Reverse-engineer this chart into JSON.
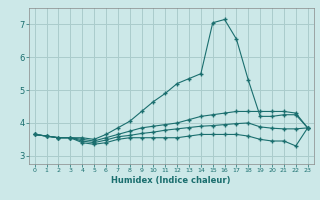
{
  "title": "",
  "xlabel": "Humidex (Indice chaleur)",
  "bg_color": "#cce8e8",
  "line_color": "#1a6e6e",
  "grid_color": "#aacccc",
  "xlim": [
    -0.5,
    23.5
  ],
  "ylim": [
    2.75,
    7.5
  ],
  "xticks": [
    0,
    1,
    2,
    3,
    4,
    5,
    6,
    7,
    8,
    9,
    10,
    11,
    12,
    13,
    14,
    15,
    16,
    17,
    18,
    19,
    20,
    21,
    22,
    23
  ],
  "yticks": [
    3,
    4,
    5,
    6,
    7
  ],
  "lines": [
    {
      "x": [
        0,
        1,
        2,
        3,
        4,
        5,
        6,
        7,
        8,
        9,
        10,
        11,
        12,
        13,
        14,
        15,
        16,
        17,
        18,
        19,
        20,
        21,
        22,
        23
      ],
      "y": [
        3.65,
        3.6,
        3.55,
        3.55,
        3.55,
        3.5,
        3.65,
        3.85,
        4.05,
        4.35,
        4.65,
        4.9,
        5.2,
        5.35,
        5.5,
        7.05,
        7.15,
        6.55,
        5.3,
        4.2,
        4.2,
        4.25,
        4.25,
        3.85
      ]
    },
    {
      "x": [
        0,
        1,
        2,
        3,
        4,
        5,
        6,
        7,
        8,
        9,
        10,
        11,
        12,
        13,
        14,
        15,
        16,
        17,
        18,
        19,
        20,
        21,
        22,
        23
      ],
      "y": [
        3.65,
        3.6,
        3.55,
        3.55,
        3.5,
        3.45,
        3.55,
        3.65,
        3.75,
        3.85,
        3.9,
        3.95,
        4.0,
        4.1,
        4.2,
        4.25,
        4.3,
        4.35,
        4.35,
        4.35,
        4.35,
        4.35,
        4.3,
        3.85
      ]
    },
    {
      "x": [
        0,
        1,
        2,
        3,
        4,
        5,
        6,
        7,
        8,
        9,
        10,
        11,
        12,
        13,
        14,
        15,
        16,
        17,
        18,
        19,
        20,
        21,
        22,
        23
      ],
      "y": [
        3.65,
        3.6,
        3.55,
        3.55,
        3.4,
        3.35,
        3.4,
        3.5,
        3.55,
        3.55,
        3.55,
        3.55,
        3.55,
        3.6,
        3.65,
        3.65,
        3.65,
        3.65,
        3.6,
        3.5,
        3.45,
        3.45,
        3.3,
        3.85
      ]
    },
    {
      "x": [
        0,
        1,
        2,
        3,
        4,
        5,
        6,
        7,
        8,
        9,
        10,
        11,
        12,
        13,
        14,
        15,
        16,
        17,
        18,
        19,
        20,
        21,
        22,
        23
      ],
      "y": [
        3.65,
        3.6,
        3.55,
        3.55,
        3.45,
        3.4,
        3.48,
        3.58,
        3.62,
        3.68,
        3.72,
        3.78,
        3.82,
        3.86,
        3.9,
        3.92,
        3.95,
        3.98,
        4.0,
        3.88,
        3.84,
        3.82,
        3.82,
        3.85
      ]
    }
  ]
}
